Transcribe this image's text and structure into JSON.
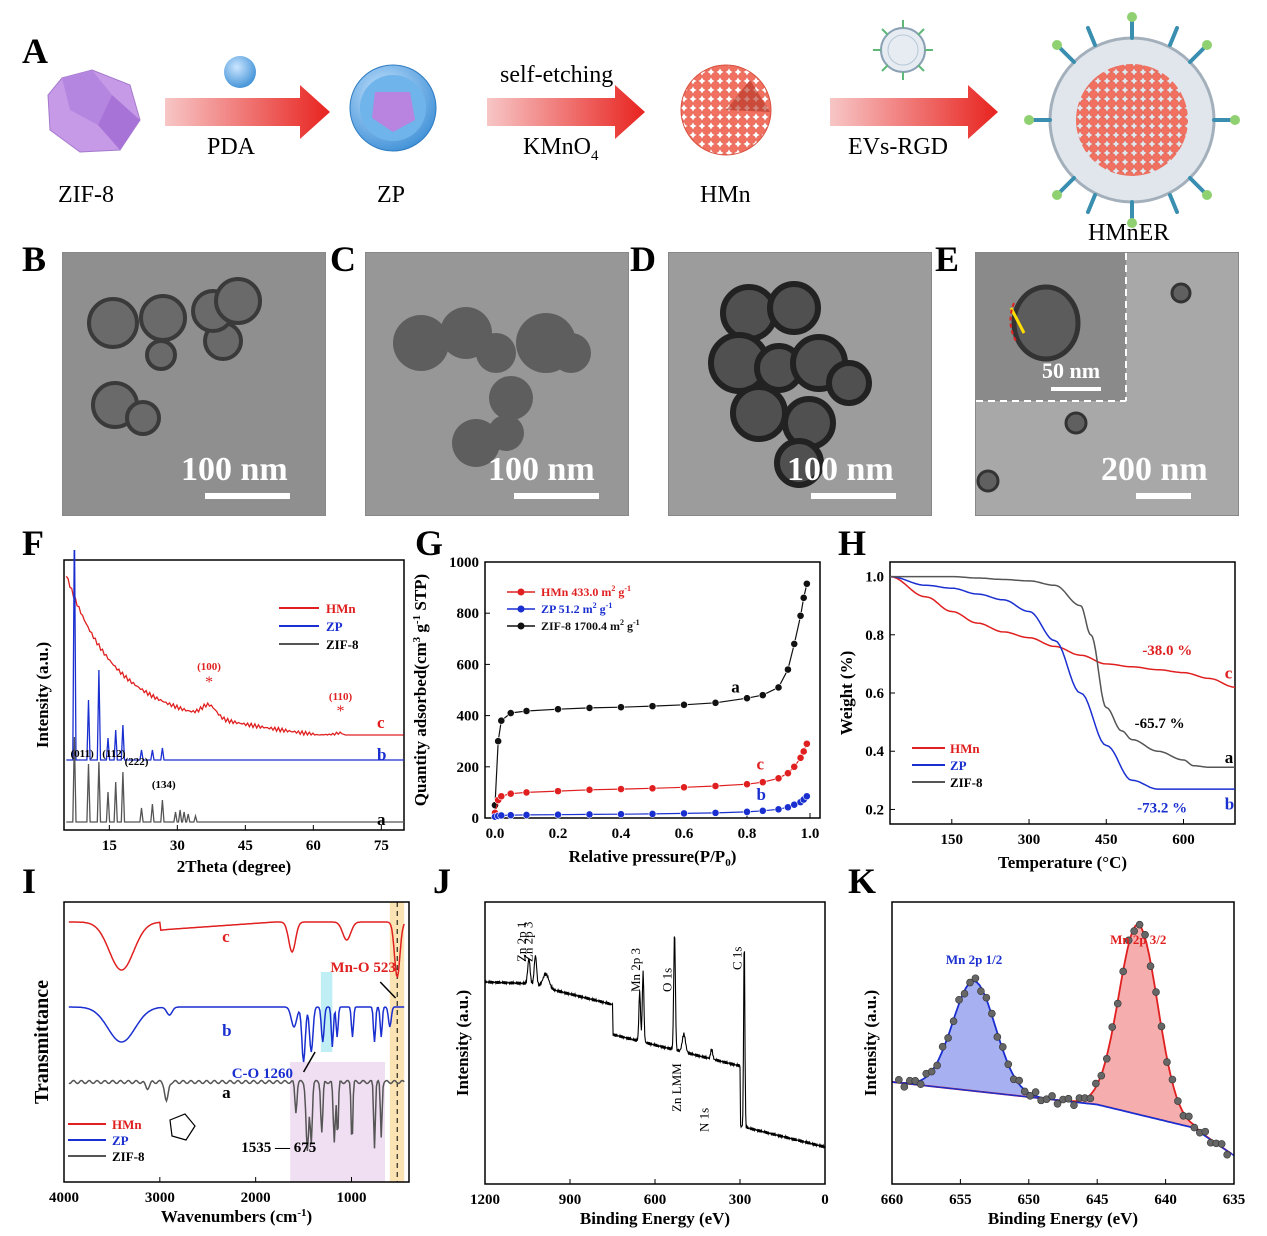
{
  "panelA": {
    "label": "A",
    "zif8": "ZIF-8",
    "zp": "ZP",
    "hmn": "HMn",
    "hmner": "HMnER",
    "arrow1": "PDA",
    "arrow2_top": "self-etching",
    "arrow2_bottom": "KMnO",
    "arrow2_sub": "4",
    "arrow3": "EVs-RGD"
  },
  "panelB": {
    "label": "B",
    "scale": "100 nm"
  },
  "panelC": {
    "label": "C",
    "scale": "100 nm"
  },
  "panelD": {
    "label": "D",
    "scale": "100 nm"
  },
  "panelE": {
    "label": "E",
    "scale": "200 nm",
    "inset_scale": "50 nm"
  },
  "panelF": {
    "label": "F",
    "chart_data": {
      "type": "line",
      "xlabel": "2Theta (degree)",
      "ylabel": "Intensity (a.u.)",
      "xticks": [
        "15",
        "30",
        "45",
        "60",
        "75"
      ],
      "legend": [
        "HMn",
        "ZP",
        "ZIF-8"
      ],
      "curve_labels": [
        "c",
        "b",
        "a"
      ],
      "annotations": [
        "(100)",
        "(110)",
        "(011)",
        "(112)",
        "(222)",
        "(134)"
      ],
      "series": [
        {
          "name": "HMn",
          "color": "#e02020",
          "peaks_2theta": [
            37,
            66
          ]
        },
        {
          "name": "ZP",
          "color": "#1a2fd0",
          "peaks_2theta": [
            7.3,
            10.4,
            12.7,
            14.7,
            16.4,
            18.0,
            22.1,
            24.5,
            26.7
          ]
        },
        {
          "name": "ZIF-8",
          "color": "#555555",
          "peaks_2theta": [
            7.3,
            10.4,
            12.7,
            14.7,
            16.4,
            18.0,
            22.1,
            24.5,
            26.7,
            29.6,
            30.6,
            31.5,
            32.4,
            34.0
          ]
        }
      ]
    }
  },
  "panelG": {
    "label": "G",
    "chart_data": {
      "type": "scatter",
      "xlabel": "Relative pressure(P/P",
      "xlabel_sub": "0",
      "xlabel_end": ")",
      "ylabel": "Quantity adsorbed(cm",
      "ylabel_sup": "3",
      "ylabel_mid": " g",
      "ylabel_sup2": "-1",
      "ylabel_end": " STP)",
      "ylim": [
        0,
        1000
      ],
      "xlim": [
        0,
        1
      ],
      "xticks": [
        "0.0",
        "0.2",
        "0.4",
        "0.6",
        "0.8",
        "1.0"
      ],
      "yticks": [
        "0",
        "200",
        "400",
        "600",
        "800",
        "1000"
      ],
      "legend_hmn": "HMn 433.0 m",
      "legend_zp": "ZP  51.2 m",
      "legend_zif": "ZIF-8  1700.4 m",
      "legend_unit_sup": "2",
      "legend_unit": " g",
      "legend_unit_sup2": "-1",
      "curve_labels": [
        "a",
        "c",
        "b"
      ],
      "series": [
        {
          "name": "ZIF-8",
          "color": "#111111",
          "x": [
            0.0,
            0.01,
            0.02,
            0.05,
            0.1,
            0.2,
            0.3,
            0.4,
            0.5,
            0.6,
            0.7,
            0.8,
            0.85,
            0.9,
            0.93,
            0.95,
            0.97,
            0.98,
            0.99
          ],
          "y": [
            50,
            300,
            380,
            410,
            418,
            425,
            430,
            433,
            437,
            442,
            450,
            468,
            480,
            510,
            580,
            680,
            790,
            860,
            915
          ]
        },
        {
          "name": "HMn",
          "color": "#e02020",
          "x": [
            0.0,
            0.01,
            0.02,
            0.05,
            0.1,
            0.2,
            0.3,
            0.4,
            0.5,
            0.6,
            0.7,
            0.8,
            0.85,
            0.9,
            0.93,
            0.95,
            0.97,
            0.98,
            0.99
          ],
          "y": [
            20,
            70,
            85,
            95,
            100,
            105,
            110,
            113,
            116,
            120,
            125,
            132,
            140,
            155,
            175,
            200,
            235,
            260,
            290
          ]
        },
        {
          "name": "ZP",
          "color": "#1a2fd0",
          "x": [
            0.0,
            0.01,
            0.02,
            0.05,
            0.1,
            0.2,
            0.3,
            0.4,
            0.5,
            0.6,
            0.7,
            0.8,
            0.85,
            0.9,
            0.93,
            0.95,
            0.97,
            0.98,
            0.99
          ],
          "y": [
            5,
            8,
            10,
            11,
            12,
            13,
            14,
            15,
            16,
            18,
            20,
            24,
            28,
            34,
            42,
            52,
            62,
            72,
            85
          ]
        }
      ]
    }
  },
  "panelH": {
    "label": "H",
    "chart_data": {
      "type": "line",
      "xlabel": "Temperature (°C)",
      "ylabel": "Weight (%)",
      "xlim": [
        30,
        700
      ],
      "ylim": [
        0.15,
        1.05
      ],
      "xticks": [
        "150",
        "300",
        "450",
        "600"
      ],
      "yticks": [
        "0.2",
        "0.4",
        "0.6",
        "0.8",
        "1.0"
      ],
      "legend": [
        "HMn",
        "ZP",
        "ZIF-8"
      ],
      "labels": [
        "-38.0 %",
        "-65.7 %",
        "-73.2 %"
      ],
      "curve_labels": [
        "c",
        "a",
        "b"
      ],
      "series": [
        {
          "name": "HMn",
          "color": "#e02020",
          "x": [
            30,
            100,
            150,
            200,
            250,
            300,
            350,
            400,
            450,
            500,
            550,
            600,
            650,
            700
          ],
          "y": [
            1.0,
            0.93,
            0.88,
            0.84,
            0.81,
            0.79,
            0.76,
            0.73,
            0.7,
            0.69,
            0.68,
            0.67,
            0.65,
            0.62
          ]
        },
        {
          "name": "ZP",
          "color": "#1a2fd0",
          "x": [
            30,
            100,
            150,
            200,
            250,
            300,
            350,
            400,
            450,
            500,
            550,
            600,
            650,
            700
          ],
          "y": [
            1.0,
            0.97,
            0.96,
            0.94,
            0.92,
            0.88,
            0.78,
            0.6,
            0.42,
            0.3,
            0.27,
            0.27,
            0.27,
            0.27
          ]
        },
        {
          "name": "ZIF-8",
          "color": "#555555",
          "x": [
            30,
            100,
            150,
            200,
            250,
            300,
            350,
            400,
            420,
            450,
            480,
            500,
            550,
            600,
            620,
            650,
            700
          ],
          "y": [
            1.0,
            1.0,
            1.0,
            0.995,
            0.99,
            0.985,
            0.97,
            0.9,
            0.8,
            0.55,
            0.47,
            0.44,
            0.4,
            0.37,
            0.35,
            0.345,
            0.345
          ]
        }
      ]
    }
  },
  "panelI": {
    "label": "I",
    "chart_data": {
      "type": "line",
      "xlabel": "Wavenumbers (cm",
      "xlabel_sup": "-1",
      "xlabel_end": ")",
      "ylabel": "Transmittance",
      "xticks": [
        "4000",
        "3000",
        "2000",
        "1000"
      ],
      "legend": [
        "HMn",
        "ZP",
        "ZIF-8"
      ],
      "curve_labels": [
        "c",
        "b",
        "a"
      ],
      "annotations": [
        "Mn-O 523",
        "C-O 1260",
        "1535 — 675"
      ]
    }
  },
  "panelJ": {
    "label": "J",
    "chart_data": {
      "type": "line",
      "xlabel": "Binding Energy (eV)",
      "ylabel": "Intensity (a.u.)",
      "xticks": [
        "1200",
        "900",
        "600",
        "300",
        "0"
      ],
      "peak_labels": [
        "Zn 2p 1",
        "Zn 2p 3",
        "Mn 2p 3",
        "O 1s",
        "Zn LMM",
        "N 1s",
        "C 1s"
      ]
    }
  },
  "panelK": {
    "label": "K",
    "chart_data": {
      "type": "line",
      "xlabel": "Binding Energy (eV)",
      "ylabel": "Intensity (a.u.)",
      "xticks": [
        "660",
        "655",
        "650",
        "645",
        "640",
        "635"
      ],
      "peak_labels": [
        "Mn 2p 1/2",
        "Mn 2p 3/2"
      ],
      "peaks_eV": [
        654,
        642
      ]
    }
  }
}
